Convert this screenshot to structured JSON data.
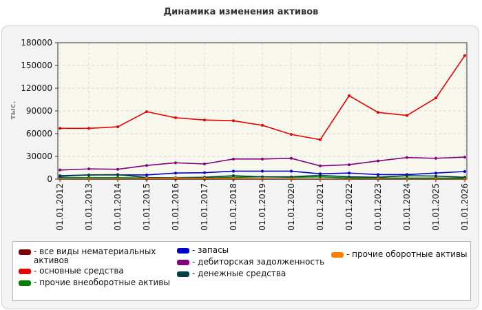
{
  "chart_data": {
    "type": "line",
    "title": "Динамика изменения активов",
    "ylabel": "тыс.",
    "ylim": [
      0,
      180000
    ],
    "yticks": [
      "0",
      "30000",
      "60000",
      "90000",
      "120000",
      "150000",
      "180000"
    ],
    "grid": true,
    "legend_position": "bottom",
    "categories": [
      "01.01.2012",
      "01.01.2013",
      "01.01.2014",
      "01.01.2015",
      "01.01.2016",
      "01.01.2017",
      "01.01.2018",
      "01.01.2019",
      "01.01.2020",
      "01.01.2021",
      "01.01.2022",
      "01.01.2023",
      "01.01.2024",
      "01.01.2025",
      "01.01.2026"
    ],
    "series": [
      {
        "name": "- все виды нематериальных активов",
        "color": "#7a0000",
        "values": [
          0,
          0,
          0,
          0,
          0,
          0,
          0,
          0,
          0,
          0,
          0,
          0,
          0,
          0,
          0
        ]
      },
      {
        "name": "- основные средства",
        "color": "#e60000",
        "values": [
          67000,
          67000,
          69000,
          89000,
          81000,
          78000,
          77000,
          71000,
          59000,
          52000,
          110000,
          88000,
          84000,
          107000,
          163000
        ]
      },
      {
        "name": "- прочие внеоборотные активы",
        "color": "#008000",
        "values": [
          2000,
          2000,
          2000,
          1500,
          1500,
          1500,
          2500,
          3000,
          2500,
          3000,
          1500,
          1500,
          1500,
          1500,
          1500
        ]
      },
      {
        "name": "- запасы",
        "color": "#0000cc",
        "values": [
          3500,
          5500,
          5500,
          5500,
          8000,
          8500,
          10500,
          10500,
          10500,
          7000,
          8000,
          6000,
          6000,
          8000,
          10000
        ]
      },
      {
        "name": "- дебиторская задолженность",
        "color": "#800080",
        "values": [
          12000,
          13500,
          13000,
          18000,
          21500,
          20000,
          26500,
          26500,
          27500,
          17500,
          19000,
          24000,
          28500,
          27500,
          29000
        ]
      },
      {
        "name": "- денежные средства",
        "color": "#004040",
        "values": [
          4500,
          5500,
          6000,
          2000,
          2000,
          2500,
          4500,
          3000,
          3000,
          5000,
          3000,
          2500,
          4500,
          4000,
          2500
        ]
      },
      {
        "name": "- прочие оборотные активы",
        "color": "#ff8000",
        "values": [
          0,
          0,
          0,
          1000,
          1500,
          1000,
          1000,
          500,
          500,
          0,
          0,
          500,
          0,
          0,
          0
        ]
      }
    ]
  }
}
